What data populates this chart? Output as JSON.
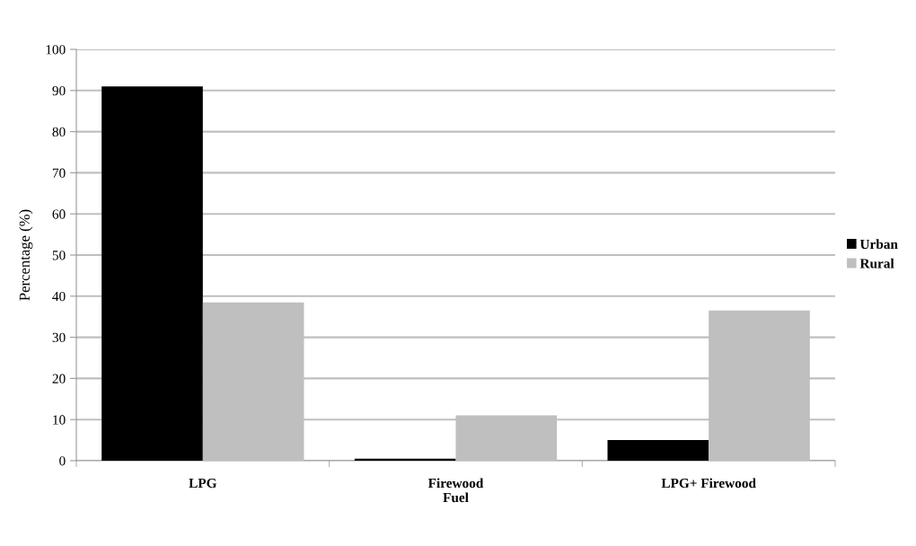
{
  "chart_data": {
    "type": "bar",
    "ylabel": "Percentage (%)",
    "categories": [
      "LPG",
      "Firewood\nFuel",
      "LPG+ Firewood"
    ],
    "series": [
      {
        "name": "Urban",
        "color": "#000000",
        "values": [
          91,
          0.5,
          5
        ]
      },
      {
        "name": "Rural",
        "color": "#bfbfbf",
        "values": [
          38.5,
          11,
          36.5
        ]
      }
    ],
    "ylim": [
      0,
      100
    ],
    "yticks": [
      0,
      10,
      20,
      30,
      40,
      50,
      60,
      70,
      80,
      90,
      100
    ],
    "grid": "y",
    "legend": "right"
  }
}
